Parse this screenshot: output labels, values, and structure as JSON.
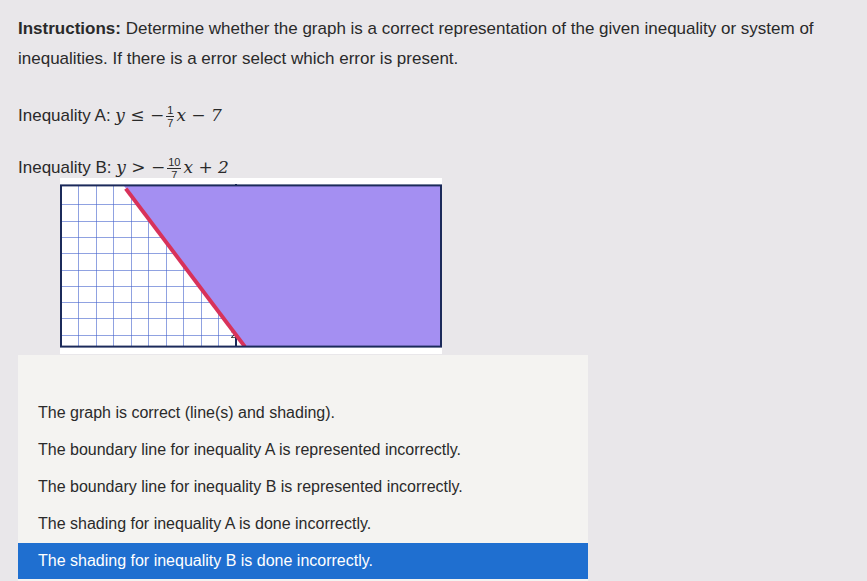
{
  "instructions": {
    "label": "Instructions:",
    "text": "Determine whether the graph is a correct representation of the given inequality or system of inequalities. If there is a error select which error is present."
  },
  "inequalities": [
    {
      "label": "Inequality A:",
      "before": "y ≤ −",
      "numerator": "1",
      "denominator": "7",
      "after": "x − 7"
    },
    {
      "label": "Inequality B:",
      "before": "y > −",
      "numerator": "10",
      "denominator": "7",
      "after": "x + 2"
    }
  ],
  "chart_data": {
    "type": "line",
    "xlim": [
      -10,
      11.7
    ],
    "ylim": [
      1.3,
      11.2
    ],
    "xticks": [
      -10,
      -9,
      -8,
      -7,
      -6,
      -5,
      -4,
      -3,
      -2,
      -1,
      0,
      1,
      2,
      3,
      4,
      5,
      6,
      7,
      8,
      9,
      10,
      11
    ],
    "yticks": [
      2,
      3,
      4,
      5,
      6,
      7,
      8,
      9,
      10
    ],
    "grid": true,
    "tick_labels": "y",
    "series": [
      {
        "color": "#d8325a",
        "x": [
          -6.3,
          0.5
        ],
        "values": [
          11.0,
          1.3
        ]
      }
    ],
    "shading": {
      "color": "#a48ff2",
      "x": [
        -6.42,
        0.5,
        11.7
      ],
      "values": [
        11.2,
        1.3,
        1.3
      ]
    }
  },
  "choices": [
    {
      "text": "The graph is correct (line(s) and shading)."
    },
    {
      "text": "The boundary line for inequality A is represented incorrectly."
    },
    {
      "text": "The boundary line for inequality B is represented incorrectly."
    },
    {
      "text": "The shading for inequality A is done incorrectly."
    },
    {
      "text": "The shading for inequality B is done incorrectly.",
      "selected": true
    }
  ]
}
